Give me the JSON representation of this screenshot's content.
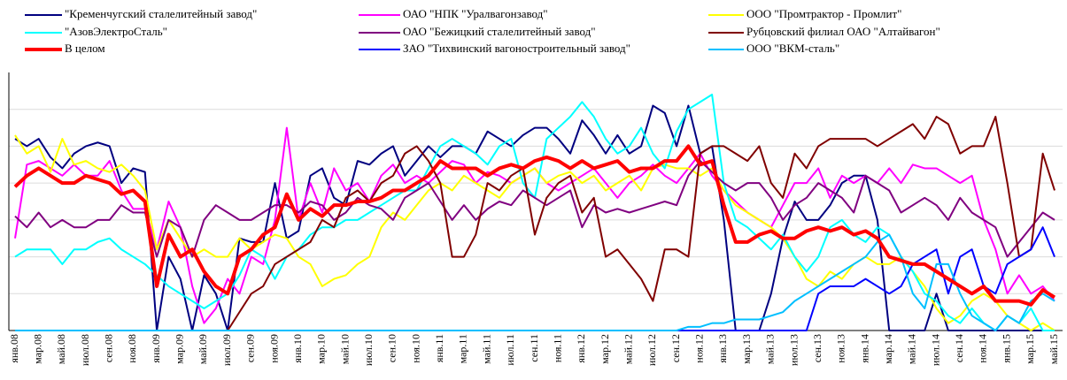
{
  "chart_data": {
    "type": "line",
    "categories": [
      "янв.08",
      null,
      "мар.08",
      null,
      "май.08",
      null,
      "июл.08",
      null,
      "сен.08",
      null,
      "ноя.08",
      null,
      "янв.09",
      null,
      "мар.09",
      null,
      "май.09",
      null,
      "июл.09",
      null,
      "сен.09",
      null,
      "ноя.09",
      null,
      "янв.10",
      null,
      "мар.10",
      null,
      "май.10",
      null,
      "июл.10",
      null,
      "сен.10",
      null,
      "ноя.10",
      null,
      "янв.11",
      null,
      "мар.11",
      null,
      "май.11",
      null,
      "июл.11",
      null,
      "сен.11",
      null,
      "ноя.11",
      null,
      "янв.12",
      null,
      "мар.12",
      null,
      "май.12",
      null,
      "июл.12",
      null,
      "сен.12",
      null,
      "ноя.12",
      null,
      "янв.13",
      null,
      "мар.13",
      null,
      "май.13",
      null,
      "июл.13",
      null,
      "сен.13",
      null,
      "ноя.13",
      null,
      "янв.14",
      null,
      "мар.14",
      null,
      "май.14",
      null,
      "июл.14",
      null,
      "сен.14",
      null,
      "ноя.14",
      null,
      "янв.15",
      null,
      "мар.15",
      null,
      "май.15"
    ],
    "series": [
      {
        "name": "\"Кременчугский сталелитейный завод\"",
        "color": "#000080",
        "width": 2,
        "values": [
          52,
          50,
          52,
          47,
          44,
          48,
          50,
          51,
          50,
          40,
          44,
          43,
          0,
          20,
          14,
          0,
          15,
          10,
          0,
          25,
          24,
          24,
          40,
          25,
          27,
          42,
          44,
          36,
          34,
          46,
          45,
          48,
          50,
          42,
          46,
          50,
          47,
          50,
          50,
          48,
          54,
          52,
          50,
          53,
          55,
          55,
          52,
          48,
          57,
          53,
          48,
          53,
          48,
          50,
          61,
          59,
          50,
          61,
          48,
          50,
          30,
          0,
          0,
          0,
          10,
          25,
          35,
          30,
          30,
          34,
          40,
          42,
          42,
          30,
          0,
          0,
          0,
          0,
          10,
          0,
          0,
          0,
          0,
          0,
          0,
          0,
          0,
          0,
          0
        ]
      },
      {
        "name": "ОАО \"НПК \"Уралвагонзавод\"",
        "color": "#ff00ff",
        "width": 2,
        "values": [
          25,
          45,
          46,
          44,
          42,
          45,
          42,
          42,
          46,
          38,
          33,
          33,
          22,
          35,
          28,
          12,
          2,
          6,
          14,
          10,
          20,
          18,
          30,
          55,
          30,
          40,
          32,
          44,
          38,
          40,
          35,
          42,
          45,
          40,
          42,
          40,
          43,
          46,
          45,
          40,
          43,
          42,
          40,
          42,
          44,
          40,
          38,
          40,
          42,
          44,
          40,
          36,
          40,
          42,
          45,
          42,
          40,
          44,
          48,
          42,
          38,
          35,
          32,
          30,
          28,
          34,
          40,
          40,
          44,
          36,
          42,
          40,
          42,
          40,
          44,
          40,
          45,
          44,
          44,
          42,
          40,
          42,
          30,
          22,
          10,
          15,
          10,
          12,
          8
        ]
      },
      {
        "name": "ООО \"Промтрактор - Промлит\"",
        "color": "#ffff00",
        "width": 2,
        "values": [
          53,
          48,
          50,
          43,
          52,
          45,
          46,
          44,
          43,
          45,
          42,
          38,
          22,
          30,
          25,
          20,
          22,
          20,
          20,
          25,
          22,
          24,
          26,
          25,
          20,
          18,
          12,
          14,
          15,
          18,
          20,
          28,
          32,
          30,
          34,
          38,
          40,
          38,
          42,
          40,
          38,
          36,
          40,
          42,
          44,
          40,
          42,
          43,
          40,
          42,
          38,
          40,
          42,
          38,
          44,
          45,
          44,
          44,
          42,
          44,
          38,
          34,
          32,
          30,
          28,
          25,
          20,
          14,
          12,
          16,
          14,
          18,
          20,
          18,
          18,
          20,
          16,
          12,
          6,
          2,
          4,
          8,
          10,
          8,
          4,
          2,
          0,
          2,
          0
        ]
      },
      {
        "name": "\"АзовЭлектроСталь\"",
        "color": "#00ffff",
        "width": 2,
        "values": [
          20,
          22,
          22,
          22,
          18,
          22,
          22,
          24,
          25,
          22,
          20,
          18,
          15,
          12,
          10,
          8,
          6,
          8,
          10,
          15,
          22,
          20,
          14,
          20,
          22,
          26,
          28,
          28,
          30,
          30,
          32,
          34,
          36,
          38,
          38,
          44,
          50,
          52,
          50,
          48,
          45,
          50,
          52,
          40,
          36,
          52,
          55,
          58,
          62,
          58,
          52,
          48,
          50,
          55,
          48,
          44,
          54,
          60,
          62,
          64,
          40,
          30,
          28,
          25,
          22,
          26,
          20,
          16,
          20,
          28,
          30,
          26,
          24,
          28,
          26,
          20,
          16,
          10,
          8,
          4,
          2,
          6,
          2,
          0,
          4,
          2,
          6,
          0,
          0
        ]
      },
      {
        "name": "ОАО \"Бежицкий сталелитейный завод\"",
        "color": "#800080",
        "width": 2,
        "values": [
          31,
          28,
          32,
          28,
          30,
          28,
          28,
          30,
          30,
          34,
          32,
          32,
          20,
          30,
          28,
          20,
          30,
          34,
          32,
          30,
          30,
          32,
          34,
          34,
          32,
          35,
          34,
          30,
          32,
          36,
          34,
          33,
          30,
          36,
          38,
          40,
          35,
          30,
          34,
          30,
          33,
          35,
          34,
          38,
          36,
          34,
          36,
          38,
          28,
          34,
          32,
          33,
          32,
          33,
          34,
          35,
          34,
          42,
          46,
          43,
          40,
          38,
          40,
          40,
          36,
          30,
          34,
          36,
          40,
          38,
          36,
          32,
          42,
          40,
          38,
          32,
          34,
          36,
          34,
          30,
          36,
          32,
          30,
          28,
          20,
          24,
          28,
          32,
          30
        ]
      },
      {
        "name": "Рубцовский филиал ОАО \"Алтайвагон\"",
        "color": "#800000",
        "width": 2,
        "values": [
          0,
          0,
          0,
          0,
          0,
          0,
          0,
          0,
          0,
          0,
          0,
          0,
          0,
          0,
          0,
          0,
          0,
          0,
          0,
          5,
          10,
          12,
          18,
          20,
          22,
          24,
          30,
          28,
          36,
          38,
          35,
          40,
          42,
          48,
          50,
          46,
          40,
          20,
          20,
          26,
          40,
          38,
          42,
          44,
          26,
          36,
          40,
          42,
          32,
          36,
          20,
          22,
          18,
          14,
          8,
          22,
          22,
          20,
          48,
          50,
          50,
          48,
          46,
          50,
          40,
          36,
          48,
          44,
          50,
          52,
          52,
          52,
          52,
          50,
          52,
          54,
          56,
          52,
          58,
          56,
          48,
          50,
          50,
          58,
          40,
          20,
          22,
          48,
          38
        ]
      },
      {
        "name": "В целом",
        "color": "#ff0000",
        "width": 4,
        "values": [
          39,
          42,
          44,
          42,
          40,
          40,
          42,
          41,
          40,
          37,
          38,
          35,
          12,
          26,
          20,
          22,
          16,
          12,
          10,
          20,
          22,
          26,
          28,
          37,
          30,
          33,
          31,
          34,
          34,
          35,
          35,
          36,
          38,
          38,
          40,
          42,
          46,
          44,
          44,
          44,
          42,
          44,
          45,
          44,
          46,
          47,
          46,
          44,
          46,
          44,
          45,
          46,
          43,
          44,
          44,
          46,
          46,
          50,
          45,
          46,
          34,
          24,
          24,
          26,
          27,
          25,
          25,
          27,
          28,
          27,
          28,
          26,
          27,
          25,
          20,
          19,
          18,
          18,
          16,
          14,
          12,
          10,
          12,
          8,
          8,
          8,
          7,
          11,
          9
        ]
      },
      {
        "name": "ЗАО \"Тихвинский вагоностроительный завод\"",
        "color": "#0000ff",
        "width": 2,
        "values": [
          0,
          0,
          0,
          0,
          0,
          0,
          0,
          0,
          0,
          0,
          0,
          0,
          0,
          0,
          0,
          0,
          0,
          0,
          0,
          0,
          0,
          0,
          0,
          0,
          0,
          0,
          0,
          0,
          0,
          0,
          0,
          0,
          0,
          0,
          0,
          0,
          0,
          0,
          0,
          0,
          0,
          0,
          0,
          0,
          0,
          0,
          0,
          0,
          0,
          0,
          0,
          0,
          0,
          0,
          0,
          0,
          0,
          0,
          0,
          0,
          0,
          0,
          0,
          0,
          0,
          0,
          0,
          0,
          10,
          12,
          12,
          12,
          14,
          12,
          10,
          12,
          18,
          20,
          22,
          10,
          20,
          22,
          12,
          10,
          18,
          20,
          22,
          28,
          20
        ]
      },
      {
        "name": "ООО \"ВКМ-сталь\"",
        "color": "#00bfff",
        "width": 2,
        "values": [
          0,
          0,
          0,
          0,
          0,
          0,
          0,
          0,
          0,
          0,
          0,
          0,
          0,
          0,
          0,
          0,
          0,
          0,
          0,
          0,
          0,
          0,
          0,
          0,
          0,
          0,
          0,
          0,
          0,
          0,
          0,
          0,
          0,
          0,
          0,
          0,
          0,
          0,
          0,
          0,
          0,
          0,
          0,
          0,
          0,
          0,
          0,
          0,
          0,
          0,
          0,
          0,
          0,
          0,
          0,
          0,
          0,
          1,
          1,
          2,
          2,
          3,
          3,
          3,
          4,
          5,
          8,
          10,
          12,
          14,
          16,
          18,
          20,
          24,
          26,
          20,
          10,
          6,
          18,
          18,
          10,
          4,
          2,
          0,
          4,
          2,
          8,
          10,
          8
        ]
      }
    ],
    "ylim": [
      0,
      70
    ],
    "yticks": [
      0,
      10,
      20,
      30,
      40,
      50,
      60
    ],
    "grid": true
  }
}
